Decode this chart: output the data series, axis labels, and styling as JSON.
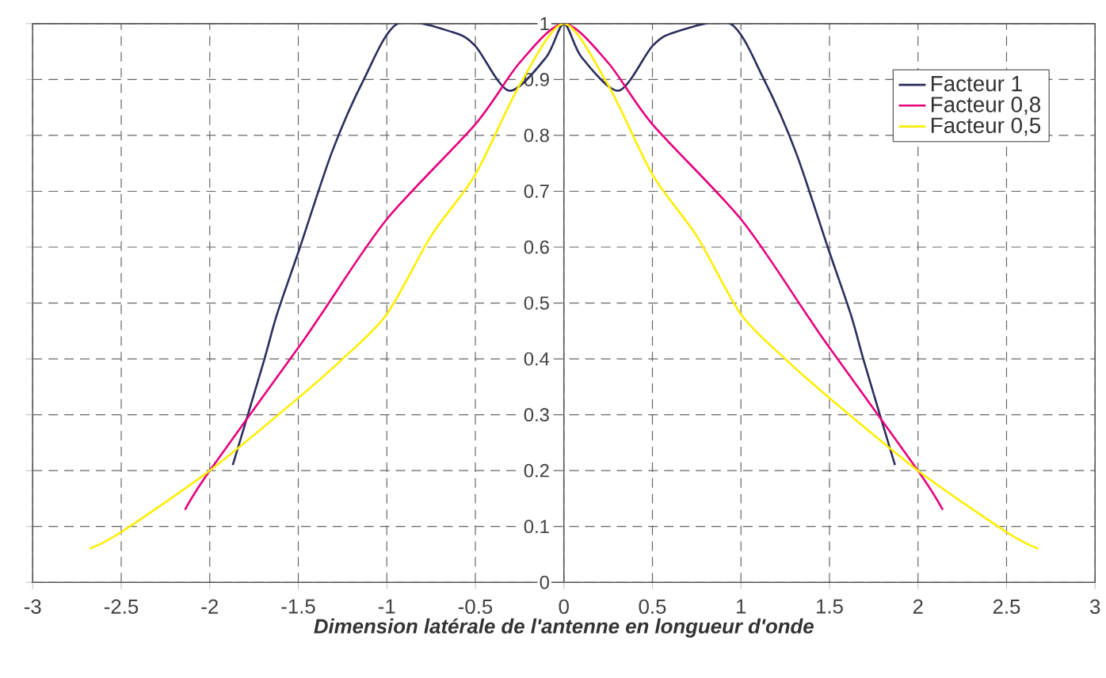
{
  "chart_data": {
    "type": "line",
    "xlabel": "Dimension latérale de l'antenne en longueur d'onde",
    "xlim": [
      -3,
      3
    ],
    "ylim": [
      0,
      1
    ],
    "xticks": [
      -3,
      -2.5,
      -2,
      -1.5,
      -1,
      -0.5,
      0,
      0.5,
      1,
      1.5,
      2,
      2.5,
      3
    ],
    "yticks": [
      0,
      0.1,
      0.2,
      0.3,
      0.4,
      0.5,
      0.6,
      0.7,
      0.8,
      0.9,
      1
    ],
    "grid": true,
    "legend": "top right",
    "series": [
      {
        "name": "Facteur 1",
        "color": "#2b2d5c",
        "x": [
          -1.87,
          -1.7,
          -1.62,
          -1.49,
          -1.31,
          -1.13,
          -0.94,
          -0.63,
          -0.5,
          -0.31,
          -0.1,
          0,
          0.1,
          0.31,
          0.5,
          0.63,
          0.94,
          1.13,
          1.31,
          1.49,
          1.62,
          1.7,
          1.87
        ],
        "values": [
          0.21,
          0.39,
          0.48,
          0.6,
          0.77,
          0.9,
          1.0,
          0.985,
          0.96,
          0.88,
          0.94,
          1.0,
          0.94,
          0.88,
          0.96,
          0.985,
          1.0,
          0.9,
          0.77,
          0.6,
          0.48,
          0.39,
          0.21
        ]
      },
      {
        "name": "Facteur 0,8",
        "color": "#e6007e",
        "x": [
          -2.14,
          -2,
          -1.5,
          -1.37,
          -1,
          -0.5,
          -0.25,
          0,
          0.25,
          0.5,
          1,
          1.37,
          1.5,
          2,
          2.14
        ],
        "values": [
          0.13,
          0.2,
          0.42,
          0.48,
          0.65,
          0.82,
          0.93,
          1.0,
          0.93,
          0.82,
          0.65,
          0.48,
          0.42,
          0.2,
          0.13
        ]
      },
      {
        "name": "Facteur 0,5",
        "color": "#ffee00",
        "x": [
          -2.68,
          -2.5,
          -2,
          -1.5,
          -1.25,
          -1,
          -0.75,
          -0.5,
          -0.25,
          0,
          0.25,
          0.5,
          0.75,
          1,
          1.25,
          1.5,
          2,
          2.5,
          2.68
        ],
        "values": [
          0.06,
          0.09,
          0.2,
          0.33,
          0.4,
          0.48,
          0.62,
          0.73,
          0.89,
          1.0,
          0.89,
          0.73,
          0.62,
          0.48,
          0.4,
          0.33,
          0.2,
          0.09,
          0.06
        ]
      }
    ]
  }
}
